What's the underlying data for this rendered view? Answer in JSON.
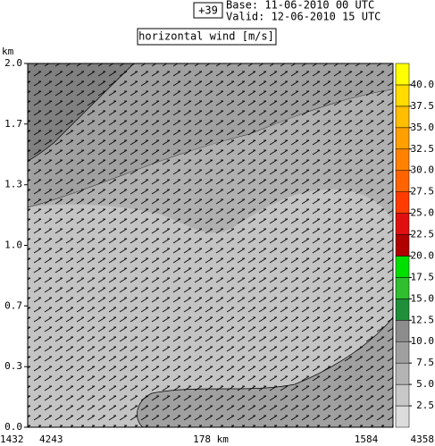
{
  "chart_data": {
    "type": "cross-section",
    "title": "horizontal wind [m/s]",
    "forecast_step": "+39",
    "base_time": "Base: 11-06-2010  00 UTC",
    "valid_time": "Valid: 12-06-2010  15 UTC",
    "y_label": "km",
    "ylim": [
      0,
      2
    ],
    "yticks": [
      {
        "value": 0,
        "label": "0.0"
      },
      {
        "value": 0.333,
        "label": "0.3"
      },
      {
        "value": 0.667,
        "label": "0.7"
      },
      {
        "value": 1,
        "label": "1.0"
      },
      {
        "value": 1.333,
        "label": "1.3"
      },
      {
        "value": 1.667,
        "label": "1.7"
      },
      {
        "value": 2,
        "label": "2.0"
      }
    ],
    "x_labels": [
      "1432",
      "4243",
      "178 km",
      "1584",
      "4358"
    ],
    "colorbar": {
      "lim": [
        0,
        42.5
      ],
      "colors": [
        "#dcdcdc",
        "#c8c8c8",
        "#b4b4b4",
        "#a0a0a0",
        "#8c8c8c",
        "#1f8f3a",
        "#2fbf2f",
        "#00e000",
        "#b00000",
        "#e01010",
        "#ff3c00",
        "#ff6400",
        "#ff8200",
        "#ffa000",
        "#ffbe00",
        "#ffdc00",
        "#ffff00"
      ],
      "ticks": [
        2.5,
        {
          "value": 5,
          "label": "5.0"
        },
        7.5,
        {
          "value": 10,
          "label": "10.0"
        },
        12.5,
        {
          "value": 15,
          "label": "15.0"
        },
        17.5,
        {
          "value": 20,
          "label": "20.0"
        },
        22.5,
        {
          "value": 25,
          "label": "25.0"
        },
        27.5,
        {
          "value": 30,
          "label": "30.0"
        },
        32.5,
        {
          "value": 35,
          "label": "35.0"
        },
        37.5,
        {
          "value": 40,
          "label": "40.0"
        }
      ]
    }
  }
}
